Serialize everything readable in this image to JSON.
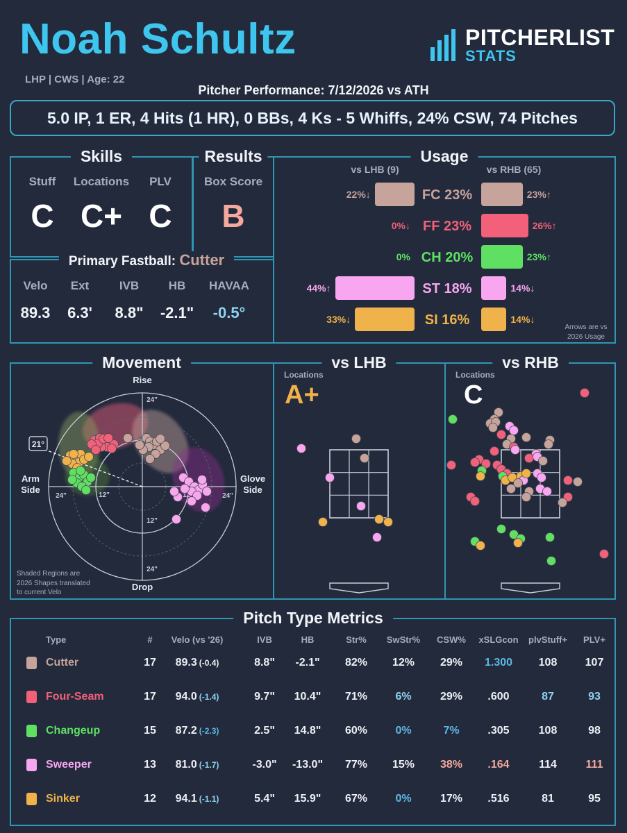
{
  "header": {
    "name": "Noah Schultz",
    "subline": "LHP | CWS | Age: 22",
    "performance": "Pitcher Performance: 7/12/2026 vs ATH",
    "logo_top": "PITCHERLIST",
    "logo_bottom": "STATS"
  },
  "summary": "5.0 IP, 1 ER, 4 Hits (1 HR), 0 BBs, 4 Ks - 5 Whiffs, 24% CSW, 74 Pitches",
  "skills": {
    "title": "Skills",
    "items": [
      {
        "label": "Stuff",
        "grade": "C"
      },
      {
        "label": "Locations",
        "grade": "C+"
      },
      {
        "label": "PLV",
        "grade": "C"
      }
    ]
  },
  "results": {
    "title": "Results",
    "label": "Box Score",
    "grade": "B",
    "grade_color": "#f4a99c"
  },
  "fastball": {
    "title": "Primary Fastball:",
    "pitch": "Cutter",
    "labels": [
      "Velo",
      "Ext",
      "IVB",
      "HB",
      "HAVAA"
    ],
    "values": [
      "89.3",
      "6.3'",
      "8.8\"",
      "-2.1\"",
      "-0.5°"
    ]
  },
  "usage": {
    "title": "Usage",
    "lhb_header": "vs LHB (9)",
    "rhb_header": "vs RHB (65)",
    "note_line1": "Arrows are vs",
    "note_line2": "2026 Usage",
    "rows": [
      {
        "label": "FC 23%",
        "color": "#c6a39b",
        "lhb": 22,
        "lhb_text": "22%↓",
        "rhb": 23,
        "rhb_text": "23%↑"
      },
      {
        "label": "FF 23%",
        "color": "#f2607a",
        "lhb": 0,
        "lhb_text": "0%↓",
        "rhb": 26,
        "rhb_text": "26%↑"
      },
      {
        "label": "CH 20%",
        "color": "#5fe063",
        "lhb": 0,
        "lhb_text": "0%",
        "rhb": 23,
        "rhb_text": "23%↑"
      },
      {
        "label": "ST 18%",
        "color": "#f7a6ef",
        "lhb": 44,
        "lhb_text": "44%↑",
        "rhb": 14,
        "rhb_text": "14%↓"
      },
      {
        "label": "SI 16%",
        "color": "#f0b24a",
        "lhb": 33,
        "lhb_text": "33%↓",
        "rhb": 14,
        "rhb_text": "14%↓"
      }
    ]
  },
  "movement": {
    "title": "Movement",
    "rise": "Rise",
    "drop": "Drop",
    "arm_side_1": "Arm",
    "arm_side_2": "Side",
    "glove_side_1": "Glove",
    "glove_side_2": "Side",
    "angle": "21°",
    "ring_labels": [
      "24\"",
      "12\"",
      "12\"",
      "24\"",
      "12\"",
      "24\"",
      "24\""
    ],
    "note_line1": "Shaded Regions are",
    "note_line2": "2026 Shapes translated",
    "note_line3": "to current Velo"
  },
  "vs_lhb": {
    "title": "vs LHB",
    "loc_label": "Locations",
    "grade": "A+",
    "grade_color": "#f0b24a"
  },
  "vs_rhb": {
    "title": "vs RHB",
    "loc_label": "Locations",
    "grade": "C",
    "grade_color": "#ffffff"
  },
  "colors": {
    "cutter": "#c6a39b",
    "fourseam": "#f2607a",
    "changeup": "#5fe063",
    "sweeper": "#f7a6ef",
    "sinker": "#f0b24a",
    "accent": "#3ec6ee",
    "bad": "#f4a99c"
  },
  "metrics": {
    "title": "Pitch Type Metrics",
    "headers": [
      "Type",
      "#",
      "Velo (vs '26)",
      "IVB",
      "HB",
      "Str%",
      "SwStr%",
      "CSW%",
      "xSLGcon",
      "plvStuff+",
      "PLV+"
    ],
    "rows": [
      {
        "type": "Cutter",
        "color": "#c6a39b",
        "n": "17",
        "velo": "89.3",
        "delta": "(-0.4)",
        "delta_color": "#eef0f5",
        "ivb": "8.8\"",
        "hb": "-2.1\"",
        "str": "82%",
        "swstr": "12%",
        "swstr_color": "#eef0f5",
        "csw": "29%",
        "csw_color": "#eef0f5",
        "xslg": "1.300",
        "xslg_color": "#5fb8e3",
        "stuff": "108",
        "stuff_color": "#eef0f5",
        "plv": "107",
        "plv_color": "#eef0f5"
      },
      {
        "type": "Four-Seam",
        "color": "#f2607a",
        "n": "17",
        "velo": "94.0",
        "delta": "(-1.4)",
        "delta_color": "#8fd3f0",
        "ivb": "9.7\"",
        "hb": "10.4\"",
        "str": "71%",
        "swstr": "6%",
        "swstr_color": "#8fd3f0",
        "csw": "29%",
        "csw_color": "#eef0f5",
        "xslg": ".600",
        "xslg_color": "#eef0f5",
        "stuff": "87",
        "stuff_color": "#8fd3f0",
        "plv": "93",
        "plv_color": "#8fd3f0"
      },
      {
        "type": "Changeup",
        "color": "#5fe063",
        "n": "15",
        "velo": "87.2",
        "delta": "(-2.3)",
        "delta_color": "#5fb8e3",
        "ivb": "2.5\"",
        "hb": "14.8\"",
        "str": "60%",
        "swstr": "0%",
        "swstr_color": "#5fb8e3",
        "csw": "7%",
        "csw_color": "#5fb8e3",
        "xslg": ".305",
        "xslg_color": "#eef0f5",
        "stuff": "108",
        "stuff_color": "#eef0f5",
        "plv": "98",
        "plv_color": "#eef0f5"
      },
      {
        "type": "Sweeper",
        "color": "#f7a6ef",
        "n": "13",
        "velo": "81.0",
        "delta": "(-1.7)",
        "delta_color": "#8fd3f0",
        "ivb": "-3.0\"",
        "hb": "-13.0\"",
        "str": "77%",
        "swstr": "15%",
        "swstr_color": "#eef0f5",
        "csw": "38%",
        "csw_color": "#f4a99c",
        "xslg": ".164",
        "xslg_color": "#f4a99c",
        "stuff": "114",
        "stuff_color": "#eef0f5",
        "plv": "111",
        "plv_color": "#f4a99c"
      },
      {
        "type": "Sinker",
        "color": "#f0b24a",
        "n": "12",
        "velo": "94.1",
        "delta": "(-1.1)",
        "delta_color": "#8fd3f0",
        "ivb": "5.4\"",
        "hb": "15.9\"",
        "str": "67%",
        "swstr": "0%",
        "swstr_color": "#5fb8e3",
        "csw": "17%",
        "csw_color": "#eef0f5",
        "xslg": ".516",
        "xslg_color": "#eef0f5",
        "stuff": "81",
        "stuff_color": "#eef0f5",
        "plv": "95",
        "plv_color": "#eef0f5"
      }
    ]
  }
}
